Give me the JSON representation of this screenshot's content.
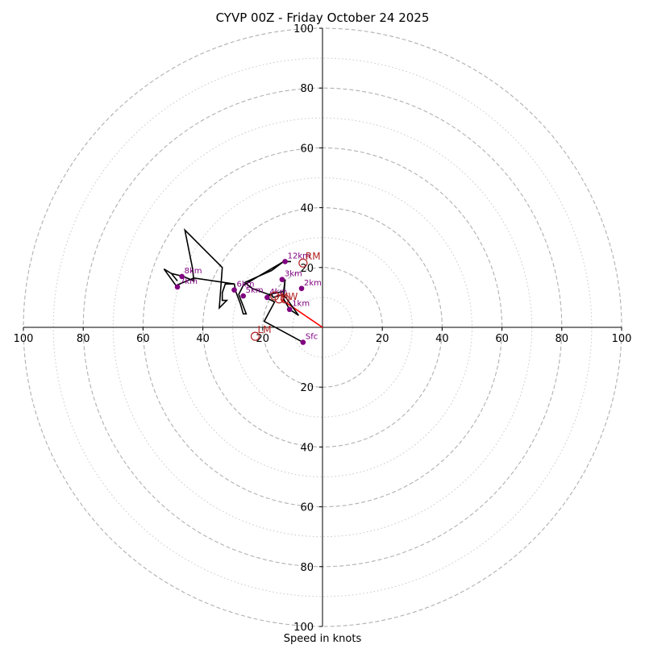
{
  "chart_data": {
    "type": "hodograph",
    "title": "CYVP 00Z - Friday October 24 2025",
    "xlabel": "Speed in knots",
    "axis_range_knots": [
      -100,
      100
    ],
    "major_rings": [
      20,
      40,
      60,
      80,
      100
    ],
    "minor_rings": [
      10,
      30,
      50,
      70,
      90
    ],
    "axis_ticks": [
      {
        "value": 100,
        "label": "100"
      },
      {
        "value": 80,
        "label": "80"
      },
      {
        "value": 60,
        "label": "60"
      },
      {
        "value": 40,
        "label": "40"
      },
      {
        "value": 20,
        "label": "20"
      }
    ],
    "trace_uv": [
      [
        -6.5,
        -5
      ],
      [
        -19.5,
        2
      ],
      [
        -16,
        8.5
      ],
      [
        -19,
        10
      ],
      [
        -17,
        11
      ],
      [
        -16.5,
        10
      ],
      [
        -13,
        11
      ],
      [
        -8,
        4
      ],
      [
        -11,
        6
      ],
      [
        -13,
        9.5
      ],
      [
        -12.5,
        16
      ],
      [
        -13,
        12
      ],
      [
        -18,
        11
      ],
      [
        -23.5,
        13
      ],
      [
        -26,
        15
      ],
      [
        -21.5,
        17
      ],
      [
        -17,
        19
      ],
      [
        -13,
        22
      ],
      [
        -10.5,
        22
      ],
      [
        -13,
        22
      ],
      [
        -21.5,
        17
      ],
      [
        -26.5,
        14
      ],
      [
        -28,
        11
      ],
      [
        -25.5,
        4.5
      ],
      [
        -26.5,
        4.5
      ],
      [
        -27.5,
        8
      ],
      [
        -29,
        12
      ],
      [
        -29.5,
        14.5
      ],
      [
        -32.5,
        14.5
      ],
      [
        -33.5,
        11.5
      ],
      [
        -33.5,
        9
      ],
      [
        -32,
        9
      ],
      [
        -34.5,
        6.5
      ],
      [
        -33.5,
        20
      ],
      [
        -40.5,
        27
      ],
      [
        -44,
        30.5
      ],
      [
        -46,
        32.5
      ],
      [
        -44.5,
        25
      ],
      [
        -43.5,
        20
      ],
      [
        -43,
        15.5
      ],
      [
        -46.5,
        17
      ],
      [
        -50.5,
        18
      ],
      [
        -48.5,
        15.5
      ],
      [
        -50.5,
        18
      ],
      [
        -53,
        19.5
      ],
      [
        -49,
        14
      ],
      [
        -43,
        16.5
      ],
      [
        -29.5,
        14.5
      ]
    ],
    "height_points": [
      {
        "label": "Sfc",
        "u": -6.5,
        "v": -5
      },
      {
        "label": "1km",
        "u": -11,
        "v": 6
      },
      {
        "label": "2km",
        "u": -7,
        "v": 13
      },
      {
        "label": "3km",
        "u": -13.5,
        "v": 16
      },
      {
        "label": "4km",
        "u": -18.5,
        "v": 10
      },
      {
        "label": "5km",
        "u": -26.5,
        "v": 10.5
      },
      {
        "label": "6km",
        "u": -29.5,
        "v": 12.5
      },
      {
        "label": "7km",
        "u": -48.5,
        "v": 13.5
      },
      {
        "label": "8km",
        "u": -47,
        "v": 17
      },
      {
        "label": "12km",
        "u": -12.5,
        "v": 22
      }
    ],
    "storm_motions": [
      {
        "label": "RM",
        "u": -6.5,
        "v": 21.5
      },
      {
        "label": "LM",
        "u": -22.5,
        "v": -3
      },
      {
        "label": "MW",
        "u": -14.5,
        "v": 9.5
      },
      {
        "label": "",
        "u": -16,
        "v": 10.5
      },
      {
        "label": "",
        "u": -12.5,
        "v": 9.5
      }
    ],
    "shear_vector": {
      "from_u": 0,
      "from_v": 0,
      "to_u": -14,
      "to_v": 9.5,
      "color": "#ff0000"
    },
    "colors": {
      "trace": "#000000",
      "points": "#800080",
      "storm_motion": "#b22222",
      "grid": "#b0b0b0",
      "shear": "#ff0000"
    }
  }
}
